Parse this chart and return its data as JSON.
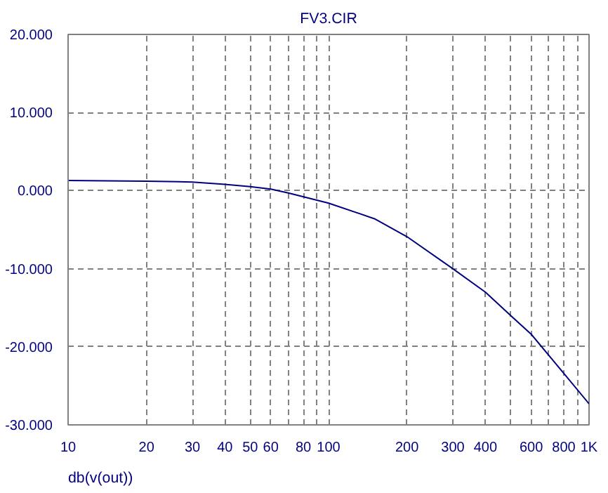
{
  "chart_data": {
    "type": "line",
    "title": "FV3.CIR",
    "xlabel": "db(v(out))",
    "log": "x",
    "grid": true,
    "marker": "none",
    "line_style": "solid",
    "xlim": [
      10,
      1000
    ],
    "ylim": [
      -30,
      20
    ],
    "xticks": [
      10,
      20,
      30,
      40,
      50,
      60,
      {
        "value": 70,
        "label": null
      },
      80,
      {
        "value": 90,
        "label": null
      },
      100,
      200,
      300,
      400,
      {
        "value": 500,
        "label": null
      },
      600,
      {
        "value": 700,
        "label": null
      },
      800,
      {
        "value": 900,
        "label": null
      },
      {
        "value": 1000,
        "label": "1K"
      }
    ],
    "yticks": [
      {
        "value": -30,
        "label": "-30.000"
      },
      {
        "value": -20,
        "label": "-20.000"
      },
      {
        "value": -10,
        "label": "-10.000"
      },
      {
        "value": 0,
        "label": "0.000"
      },
      {
        "value": 10,
        "label": "10.000"
      },
      {
        "value": 20,
        "label": "20.000"
      }
    ],
    "x": [
      10,
      20,
      30,
      40,
      50,
      60,
      70,
      100,
      150,
      200,
      300,
      400,
      500,
      600,
      800,
      1000
    ],
    "series": [
      {
        "color": "#000080",
        "values": [
          1.3,
          1.2,
          1.1,
          0.8,
          0.5,
          0.2,
          -0.3,
          -1.6,
          -3.6,
          -5.9,
          -10.0,
          -13.0,
          -16.0,
          -18.4,
          -23.4,
          -27.3
        ]
      }
    ]
  }
}
